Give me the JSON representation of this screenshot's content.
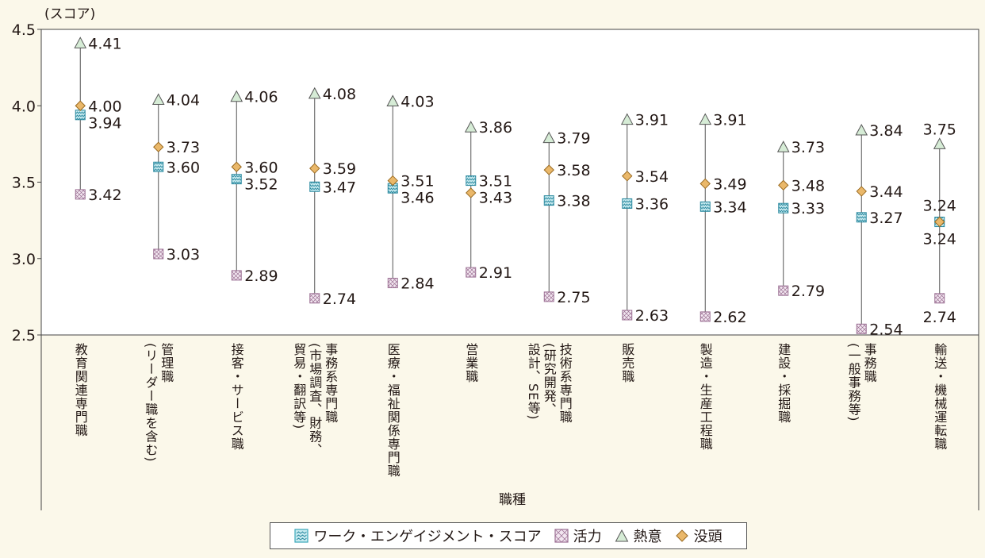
{
  "chart_data": {
    "type": "scatter",
    "y_unit_label": "(スコア)",
    "xlabel": "職種",
    "ylim": [
      2.5,
      4.5
    ],
    "y_ticks": [
      "4.5",
      "4.0",
      "3.5",
      "3.0",
      "2.5"
    ],
    "categories": [
      {
        "lines": [
          "教育関連専門職"
        ]
      },
      {
        "lines": [
          "管理職",
          "(リーダー職を含む)"
        ]
      },
      {
        "lines": [
          "接客・サービス職"
        ]
      },
      {
        "lines": [
          "事務系専門職",
          "(市場調査、財務、",
          "貿易・翻訳等)"
        ]
      },
      {
        "lines": [
          "医療・福祉関係専門職"
        ]
      },
      {
        "lines": [
          "営業職"
        ]
      },
      {
        "lines": [
          "技術系専門職",
          "(研究開発、",
          "設計、SE等)"
        ]
      },
      {
        "lines": [
          "販売職"
        ]
      },
      {
        "lines": [
          "製造・生産工程職"
        ]
      },
      {
        "lines": [
          "建設・採掘職"
        ]
      },
      {
        "lines": [
          "事務職",
          "(一般事務等)"
        ]
      },
      {
        "lines": [
          "輸送・機械運転職"
        ]
      }
    ],
    "series": [
      {
        "name": "ワーク・エンゲイジメント・スコア",
        "marker": "wave-square",
        "color": "#3aa6b9",
        "values": [
          3.94,
          3.6,
          3.52,
          3.47,
          3.46,
          3.51,
          3.38,
          3.36,
          3.34,
          3.33,
          3.27,
          3.24
        ],
        "labels": [
          "3.94",
          "3.60",
          "3.52",
          "3.47",
          "3.46",
          "3.51",
          "3.38",
          "3.36",
          "3.34",
          "3.33",
          "3.27",
          "3.24"
        ]
      },
      {
        "name": "活力",
        "marker": "cross-square",
        "color": "#b98bb0",
        "values": [
          3.42,
          3.03,
          2.89,
          2.74,
          2.84,
          2.91,
          2.75,
          2.63,
          2.62,
          2.79,
          2.54,
          2.74
        ],
        "labels": [
          "3.42",
          "3.03",
          "2.89",
          "2.74",
          "2.84",
          "2.91",
          "2.75",
          "2.63",
          "2.62",
          "2.79",
          "2.54",
          "2.74"
        ]
      },
      {
        "name": "熱意",
        "marker": "triangle",
        "color": "#cfe6cf",
        "values": [
          4.41,
          4.04,
          4.06,
          4.08,
          4.03,
          3.86,
          3.79,
          3.91,
          3.91,
          3.73,
          3.84,
          3.75
        ],
        "labels": [
          "4.41",
          "4.04",
          "4.06",
          "4.08",
          "4.03",
          "3.86",
          "3.79",
          "3.91",
          "3.91",
          "3.73",
          "3.84",
          "3.75"
        ]
      },
      {
        "name": "没頭",
        "marker": "diamond",
        "color": "#eab86a",
        "values": [
          4.0,
          3.73,
          3.6,
          3.59,
          3.51,
          3.43,
          3.58,
          3.54,
          3.49,
          3.48,
          3.44,
          3.24
        ],
        "labels": [
          "4.00",
          "3.73",
          "3.60",
          "3.59",
          "3.51",
          "3.43",
          "3.58",
          "3.54",
          "3.49",
          "3.48",
          "3.44",
          "3.24"
        ]
      }
    ]
  }
}
